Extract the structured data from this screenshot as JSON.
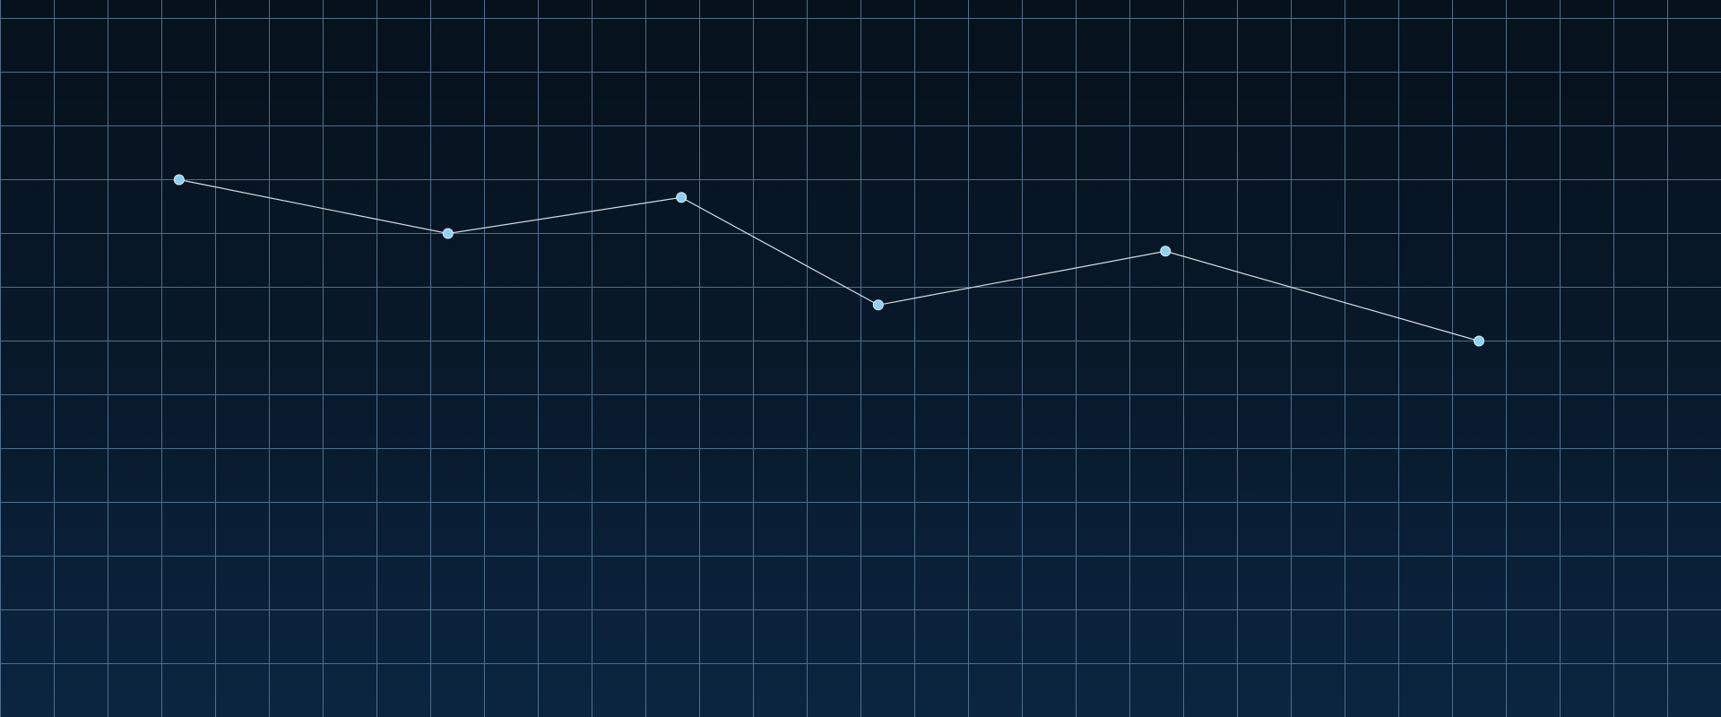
{
  "chart_data": {
    "type": "line",
    "title": "",
    "xlabel": "",
    "ylabel": "",
    "grid": true,
    "xlim": [
      0,
      32
    ],
    "ylim": [
      0,
      13.33
    ],
    "series": [
      {
        "points": [
          {
            "x": 3.33,
            "y": 9.99
          },
          {
            "x": 8.33,
            "y": 8.99
          },
          {
            "x": 12.67,
            "y": 9.66
          },
          {
            "x": 16.33,
            "y": 7.66
          },
          {
            "x": 21.67,
            "y": 8.66
          },
          {
            "x": 27.5,
            "y": 6.99
          }
        ]
      }
    ]
  },
  "colors": {
    "grid": "#4f6f8c",
    "line": "#d6dde6",
    "point_fill": "#8fd0f2",
    "point_stroke": "#d8eefa"
  }
}
